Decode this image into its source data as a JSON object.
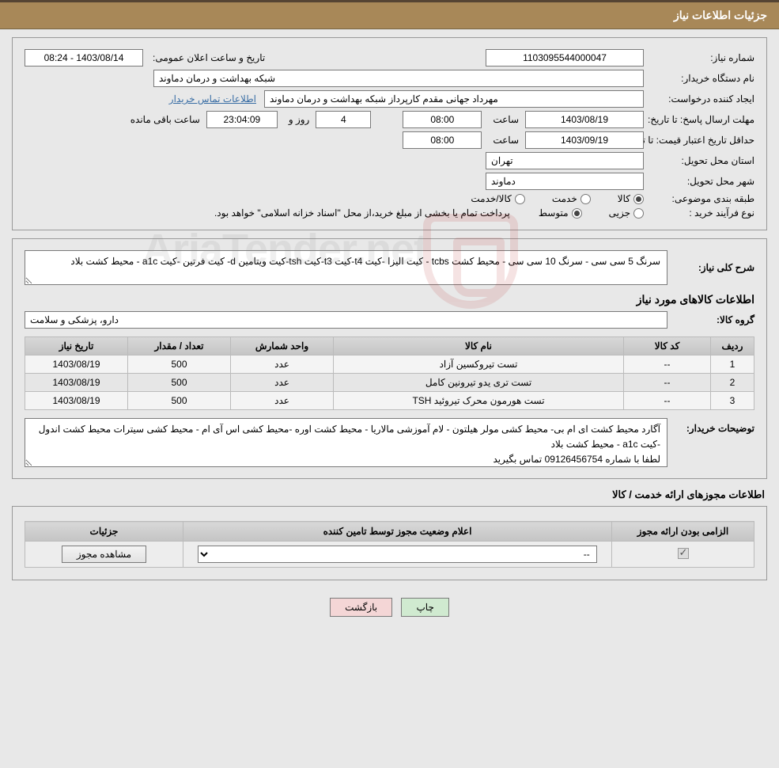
{
  "header": {
    "title": "جزئیات اطلاعات نیاز"
  },
  "fields": {
    "need_no_lbl": "شماره نیاز:",
    "need_no": "1103095544000047",
    "announce_lbl": "تاریخ و ساعت اعلان عمومی:",
    "announce": "1403/08/14 - 08:24",
    "buyer_dev_lbl": "نام دستگاه خریدار:",
    "buyer_dev": "شبکه بهداشت و درمان دماوند",
    "creator_lbl": "ایجاد کننده درخواست:",
    "creator": "مهرداد جهانی مقدم کارپرداز شبکه بهداشت و درمان دماوند",
    "contact_link": "اطلاعات تماس خریدار",
    "deadline_lbl": "مهلت ارسال پاسخ:",
    "until_lbl": "تا تاریخ:",
    "deadline_date": "1403/08/19",
    "time_lbl": "ساعت",
    "deadline_time": "08:00",
    "days": "4",
    "days_lbl": "روز و",
    "remain_time": "23:04:09",
    "remain_lbl": "ساعت باقی مانده",
    "price_valid_lbl": "حداقل تاریخ اعتبار قیمت:",
    "price_valid_date": "1403/09/19",
    "price_valid_time": "08:00",
    "province_lbl": "استان محل تحویل:",
    "province": "تهران",
    "city_lbl": "شهر محل تحویل:",
    "city": "دماوند",
    "category_lbl": "طبقه بندی موضوعی:",
    "cat": {
      "goods": "کالا",
      "service": "خدمت",
      "goods_service": "کالا/خدمت"
    },
    "process_lbl": "نوع فرآیند خرید :",
    "proc": {
      "minor": "جزیی",
      "medium": "متوسط"
    },
    "payment_note": "پرداخت تمام یا بخشی از مبلغ خرید،از محل \"اسناد خزانه اسلامی\" خواهد بود."
  },
  "desc": {
    "lbl": "شرح کلی نیاز:",
    "text": "سرنگ 5 سی سی - سرنگ 10 سی سی - محیط کشت tcbs - کیت الیزا -کیت t4-کیت t3-کیت tsh-کیت ویتامین d- کیت فرتین -کیت a1c - محیط کشت بلاد"
  },
  "items": {
    "title": "اطلاعات کالاهای مورد نیاز",
    "group_lbl": "گروه کالا:",
    "group": "دارو، پزشکی و سلامت",
    "cols": {
      "row": "ردیف",
      "code": "کد کالا",
      "name": "نام کالا",
      "unit": "واحد شمارش",
      "qty": "تعداد / مقدار",
      "date": "تاریخ نیاز"
    },
    "rows": [
      {
        "r": "1",
        "code": "--",
        "name": "تست تیروکسین آزاد",
        "unit": "عدد",
        "qty": "500",
        "date": "1403/08/19"
      },
      {
        "r": "2",
        "code": "--",
        "name": "تست تری یدو تیرونین کامل",
        "unit": "عدد",
        "qty": "500",
        "date": "1403/08/19"
      },
      {
        "r": "3",
        "code": "--",
        "name": "تست هورمون محرک تیروئید TSH",
        "unit": "عدد",
        "qty": "500",
        "date": "1403/08/19"
      }
    ]
  },
  "buyer_notes": {
    "lbl": "توضیحات خریدار:",
    "text": "آگارد  محیط کشت ای ام بی- محیط کشی مولر هیلتون - لام آموزشی مالاریا - محیط کشت اوره -محیط کشی اس آی ام - محیط کشی سیترات محیط کشت اندول -کیت a1c - محیط کشت بلاد\nلطفا با شماره 09126456754 تماس بگیرید"
  },
  "perm": {
    "title": "اطلاعات مجوزهای ارائه خدمت / کالا",
    "cols": {
      "req": "الزامی بودن ارائه مجوز",
      "status": "اعلام وضعیت مجوز توسط تامین کننده",
      "detail": "جزئیات"
    },
    "select_placeholder": "--",
    "view_btn": "مشاهده مجوز"
  },
  "buttons": {
    "print": "چاپ",
    "back": "بازگشت"
  },
  "watermark": "AriaTender.net"
}
